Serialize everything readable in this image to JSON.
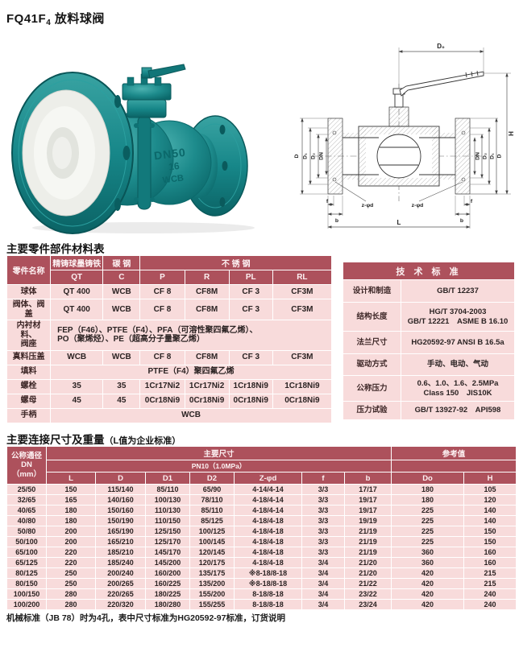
{
  "page_title": {
    "prefix": "FQ41F",
    "sub": "4",
    "suffix": " 放料球阀"
  },
  "photo": {
    "markings": [
      "DN50",
      "16",
      "WCB"
    ]
  },
  "drawing": {
    "labels": {
      "d0": "D₀",
      "h": "H",
      "d": "D",
      "d1": "D₁",
      "d2": "D₂",
      "dn": "DN",
      "zd": "z-φd",
      "f": "f",
      "b": "b",
      "l": "L"
    }
  },
  "materials": {
    "title": "主要零件部件材料表",
    "col_part": "零件名称",
    "col_cast": "精铸球墨铸铁",
    "col_carbon": "碳 钢",
    "col_ss": "不 锈 钢",
    "grades": [
      "QT",
      "C",
      "P",
      "R",
      "PL",
      "RL"
    ],
    "rows": [
      {
        "label": "球体",
        "cells": [
          "QT 400",
          "WCB",
          "CF 8",
          "CF8M",
          "CF 3",
          "CF3M"
        ]
      },
      {
        "label": "阀体、阀盖",
        "cells": [
          "QT 400",
          "WCB",
          "CF 8",
          "CF8M",
          "CF 3",
          "CF3M"
        ]
      },
      {
        "label": "内衬材料、\n阀座",
        "span": "FEP（F46）、PTFE（F4）、PFA（可溶性聚四氟乙烯）、\nPO（聚烯烃）、PE（超高分子量聚乙烯）",
        "align": "left",
        "tall": true
      },
      {
        "label": "真料压盖",
        "cells": [
          "WCB",
          "WCB",
          "CF 8",
          "CF8M",
          "CF 3",
          "CF3M"
        ]
      },
      {
        "label": "填料",
        "span": "PTFE（F4）聚四氟乙烯"
      },
      {
        "label": "螺栓",
        "cells": [
          "35",
          "35",
          "1Cr17Ni2",
          "1Cr17Ni2",
          "1Cr18Ni9",
          "1Cr18Ni9"
        ]
      },
      {
        "label": "螺母",
        "cells": [
          "45",
          "45",
          "0Cr18Ni9",
          "0Cr18Ni9",
          "0Cr18Ni9",
          "0Cr18Ni9"
        ]
      },
      {
        "label": "手柄",
        "span": "WCB"
      }
    ]
  },
  "standards": {
    "title": "技 术 标 准",
    "rows": [
      {
        "label": "设计和制造",
        "value": "GB/T 12237"
      },
      {
        "label": "结构长度",
        "value": "HG/T 3704-2003\nGB/T 12221　ASME B 16.10"
      },
      {
        "label": "法兰尺寸",
        "value": "HG20592-97 ANSI B 16.5a"
      },
      {
        "label": "驱动方式",
        "value": "手动、电动、气动"
      },
      {
        "label": "公称压力",
        "value": "0.6、1.0、1.6、2.5MPa\nClass 150　JIS10K"
      },
      {
        "label": "压力试验",
        "value": "GB/T 13927-92　API598"
      }
    ]
  },
  "dimensions": {
    "title": "主要连接尺寸及重量",
    "title_note": "（L值为企业标准）",
    "col_dn": "公称通径\nDN（mm）",
    "col_main": "主要尺寸",
    "col_pn": "PN10（1.0MPa）",
    "col_ref": "参考值",
    "columns": [
      "L",
      "D",
      "D1",
      "D2",
      "Z-φd",
      "f",
      "b",
      "Do",
      "H"
    ],
    "rows": [
      [
        "25/50",
        "150",
        "115/140",
        "85/110",
        "65/90",
        "4-14/4-14",
        "3/3",
        "17/17",
        "180",
        "105"
      ],
      [
        "32/65",
        "165",
        "140/160",
        "100/130",
        "78/110",
        "4-18/4-14",
        "3/3",
        "19/17",
        "180",
        "120"
      ],
      [
        "40/65",
        "180",
        "150/160",
        "110/130",
        "85/110",
        "4-18/4-14",
        "3/3",
        "19/17",
        "225",
        "140"
      ],
      [
        "40/80",
        "180",
        "150/190",
        "110/150",
        "85/125",
        "4-18/4-18",
        "3/3",
        "19/19",
        "225",
        "140"
      ],
      [
        "50/80",
        "200",
        "165/190",
        "125/150",
        "100/125",
        "4-18/4-18",
        "3/3",
        "21/19",
        "225",
        "150"
      ],
      [
        "50/100",
        "200",
        "165/210",
        "125/170",
        "100/145",
        "4-18/4-18",
        "3/3",
        "21/19",
        "225",
        "150"
      ],
      [
        "65/100",
        "220",
        "185/210",
        "145/170",
        "120/145",
        "4-18/4-18",
        "3/3",
        "21/19",
        "360",
        "160"
      ],
      [
        "65/125",
        "220",
        "185/240",
        "145/200",
        "120/175",
        "4-18/4-18",
        "3/4",
        "21/20",
        "360",
        "160"
      ],
      [
        "80/125",
        "250",
        "200/240",
        "160/200",
        "135/175",
        "※8-18/8-18",
        "3/4",
        "21/20",
        "420",
        "215"
      ],
      [
        "80/150",
        "250",
        "200/265",
        "160/225",
        "135/200",
        "※8-18/8-18",
        "3/4",
        "21/22",
        "420",
        "215"
      ],
      [
        "100/150",
        "280",
        "220/265",
        "180/225",
        "155/200",
        "8-18/8-18",
        "3/4",
        "23/22",
        "420",
        "240"
      ],
      [
        "100/200",
        "280",
        "220/320",
        "180/280",
        "155/255",
        "8-18/8-18",
        "3/4",
        "23/24",
        "420",
        "240"
      ]
    ],
    "footnote": "机械标准（JB 78）时为4孔，表中尺寸标准为HG20592-97标准，订货说明"
  },
  "colors": {
    "header_red": "#ad515c",
    "row_pink": "#f8dbdb",
    "valve_teal": "#1d8b8c"
  }
}
